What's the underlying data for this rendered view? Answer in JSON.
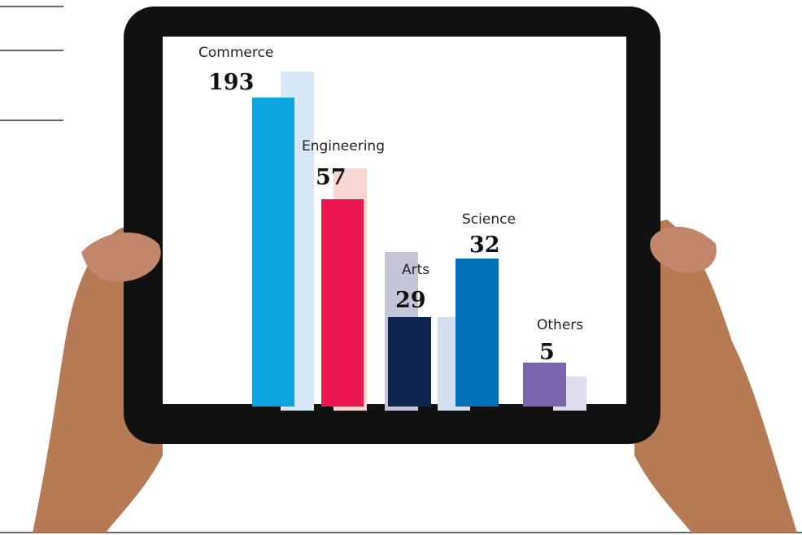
{
  "items": [
    {
      "label": "Commerce",
      "value": 193
    },
    {
      "label": "Engineering",
      "value": 57
    },
    {
      "label": "Arts",
      "value": 29
    },
    {
      "label": "Science",
      "value": 32
    },
    {
      "label": "Others",
      "value": 5
    }
  ]
}
